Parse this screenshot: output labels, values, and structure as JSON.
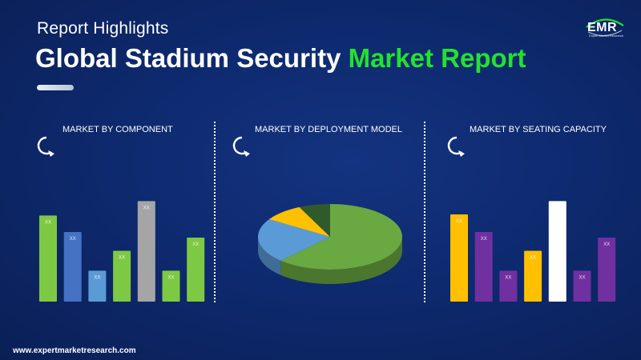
{
  "header": {
    "subtitle": "Report Highlights",
    "title_main": "Global Stadium Security",
    "title_accent": "Market Report"
  },
  "logo": {
    "text": "EMR",
    "tagline": "Expert Market Research",
    "icon": "globe-logo-icon"
  },
  "footer": {
    "website": "www.expertmarketresearch.com"
  },
  "colors": {
    "accent_green": "#22e22e",
    "bar_green": "#7ec943",
    "bar_blue": "#4472c4",
    "bar_lightblue": "#5b9bd5",
    "bar_gray": "#a5a5a5",
    "bar_yellow": "#ffc000",
    "bar_purple": "#7030a0",
    "bar_white": "#ffffff",
    "pie_green": "#6aa842",
    "pie_blue": "#5b9bd5",
    "pie_yellow": "#ffc000",
    "pie_darkgreen": "#2f5a2c"
  },
  "chart_data": [
    {
      "type": "bar",
      "title": "MARKET BY COMPONENT",
      "icon": "curved-arrow-icon",
      "categories": [
        "",
        "",
        "",
        "",
        "",
        "",
        ""
      ],
      "values": [
        78,
        63,
        28,
        46,
        91,
        28,
        58
      ],
      "data_labels": [
        "XX",
        "XX",
        "XX",
        "XX",
        "XX",
        "XX",
        "XX"
      ],
      "colors": [
        "#7ec943",
        "#4472c4",
        "#5b9bd5",
        "#7ec943",
        "#a5a5a5",
        "#7ec943",
        "#7ec943"
      ],
      "ylim": [
        0,
        100
      ]
    },
    {
      "type": "pie",
      "title": "MARKET BY DEPLOYMENT MODEL",
      "icon": "curved-arrow-icon",
      "labels": [
        "",
        "",
        "",
        ""
      ],
      "values": [
        62,
        22,
        9,
        7
      ],
      "colors": [
        "#6aa842",
        "#5b9bd5",
        "#ffc000",
        "#2f5a2c"
      ]
    },
    {
      "type": "bar",
      "title": "MARKET BY SEATING CAPACITY",
      "icon": "curved-arrow-icon",
      "categories": [
        "",
        "",
        "",
        "",
        "",
        "",
        ""
      ],
      "values": [
        79,
        63,
        28,
        46,
        91,
        28,
        58
      ],
      "data_labels": [
        "XX",
        "XX",
        "XX",
        "XX",
        "XX",
        "XX",
        "XX"
      ],
      "colors": [
        "#ffc000",
        "#7030a0",
        "#7030a0",
        "#ffc000",
        "#ffffff",
        "#7030a0",
        "#7030a0"
      ],
      "ylim": [
        0,
        100
      ]
    }
  ]
}
